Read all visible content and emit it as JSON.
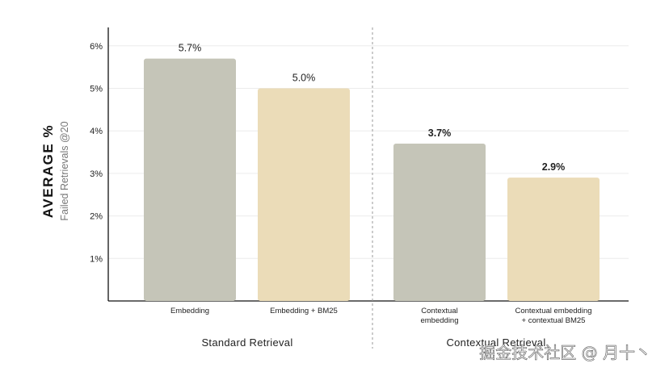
{
  "chart_data": {
    "type": "bar",
    "ylabel": "AVERAGE %",
    "ylabel_sub": "Failed Retrievals @20",
    "ylim": [
      0,
      6.5
    ],
    "yticks": [
      {
        "value": 1,
        "label": "1%"
      },
      {
        "value": 2,
        "label": "2%"
      },
      {
        "value": 3,
        "label": "3%"
      },
      {
        "value": 4,
        "label": "4%"
      },
      {
        "value": 5,
        "label": "5%"
      },
      {
        "value": 6,
        "label": "6%"
      }
    ],
    "grid": true,
    "groups": [
      {
        "name": "Standard Retrieval",
        "bars": [
          {
            "label": [
              "Embedding"
            ],
            "value": 5.7,
            "value_label": "5.7%",
            "color": "#c5c5b8"
          },
          {
            "label": [
              "Embedding + BM25"
            ],
            "value": 5.0,
            "value_label": "5.0%",
            "color": "#ebdcb8"
          }
        ]
      },
      {
        "name": "Contextual Retrieval",
        "bars": [
          {
            "label": [
              "Contextual",
              "embedding"
            ],
            "value": 3.7,
            "value_label": "3.7%",
            "color": "#c5c5b8"
          },
          {
            "label": [
              "Contextual embedding",
              "+ contextual BM25"
            ],
            "value": 2.9,
            "value_label": "2.9%",
            "color": "#ebdcb8"
          }
        ]
      }
    ]
  },
  "watermark": "掘金技术社区 @ 月十丶"
}
